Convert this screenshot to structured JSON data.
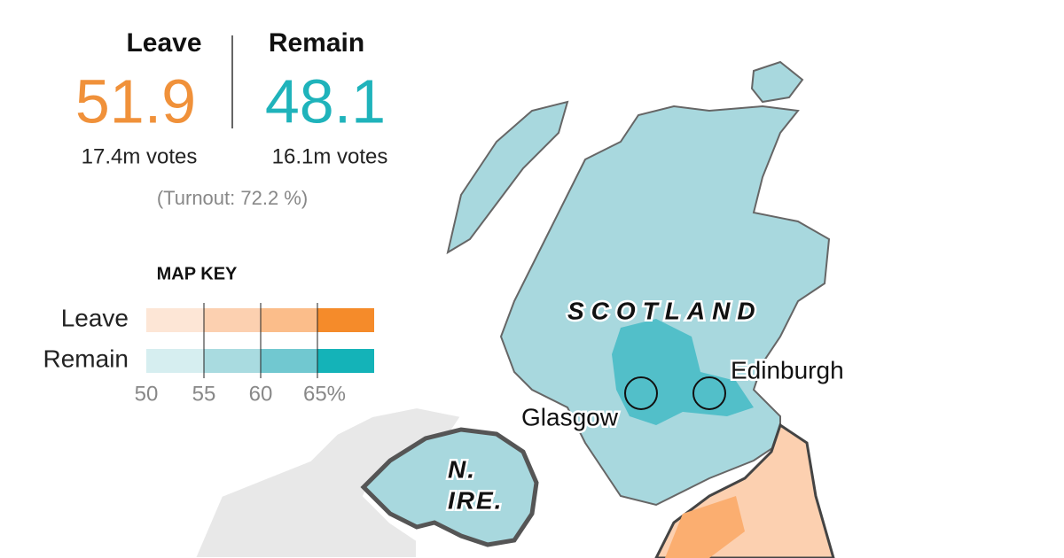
{
  "results": {
    "leave": {
      "label": "Leave",
      "share": "51.9",
      "votes": "17.4m votes",
      "color": "#f0913a"
    },
    "remain": {
      "label": "Remain",
      "share": "48.1",
      "votes": "16.1m votes",
      "color": "#1fb3bb"
    },
    "turnout": "(Turnout: 72.2 %)"
  },
  "map_key": {
    "title": "MAP KEY",
    "rows": [
      {
        "label": "Leave",
        "colors": [
          "#fde6d6",
          "#fcd0b0",
          "#fbbd8a",
          "#f58b2a"
        ]
      },
      {
        "label": "Remain",
        "colors": [
          "#d6eef0",
          "#a9dbe0",
          "#71c8d0",
          "#14b3b8"
        ]
      }
    ],
    "ticks": [
      "50",
      "55",
      "60",
      "65%"
    ]
  },
  "map_labels": {
    "region": "SCOTLAND",
    "city_1": "Edinburgh",
    "city_2": "Glasgow",
    "ni_line_1": "N.",
    "ni_line_2": "IRE."
  }
}
